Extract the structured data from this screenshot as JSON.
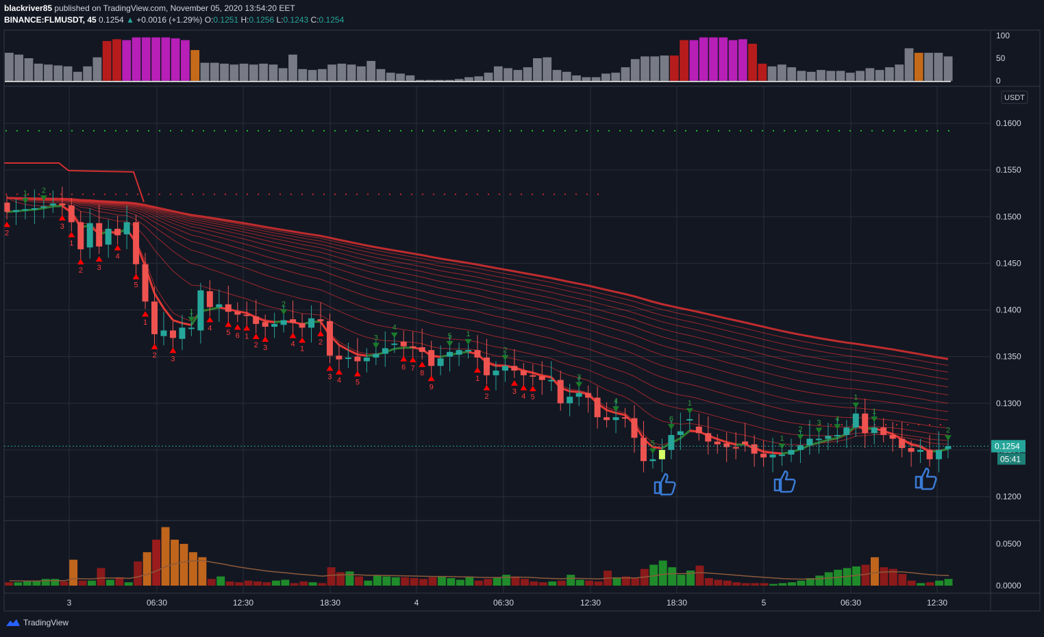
{
  "header": {
    "author": "blackriver85",
    "published_text": "published on TradingView.com, November 05, 2020 13:54:20 EET",
    "symbol": "BINANCE:FLMUSDT, 45",
    "last": "0.1254",
    "arrow": "▲",
    "change": "+0.0016 (+1.29%)",
    "o_label": "O:",
    "o": "0.1251",
    "h_label": "H:",
    "h": "0.1256",
    "l_label": "L:",
    "l": "0.1243",
    "c_label": "C:",
    "c": "0.1254"
  },
  "branding": {
    "logo_text": "TradingView",
    "icon": "tradingview-cloud-icon"
  },
  "currency_label": "USDT",
  "price_tag": {
    "price": "0.1254",
    "countdown": "05:41"
  },
  "colors": {
    "background": "#131722",
    "grid": "#2a2e39",
    "text": "#d1d4dc",
    "up": "#26a69a",
    "down": "#ef5350",
    "ribbon": "#d32f2f",
    "signal_up": "#1b7a2a",
    "signal_down": "#ff0000",
    "thumb": "#3a7bd5"
  },
  "chart_data": [
    {
      "type": "candlestick",
      "name": "price",
      "yaxis_ticks": [
        "0.1600",
        "0.1550",
        "0.1500",
        "0.1450",
        "0.1400",
        "0.1350",
        "0.1300",
        "0.1250",
        "0.1200"
      ],
      "ylim": [
        0.118,
        0.163
      ],
      "xaxis_ticks": [
        "3",
        "06:30",
        "12:30",
        "18:30",
        "4",
        "06:30",
        "12:30",
        "18:30",
        "5",
        "06:30",
        "12:30"
      ],
      "last_price": 0.1254,
      "close": [
        0.1505,
        0.1507,
        0.1508,
        0.1509,
        0.1511,
        0.1514,
        0.1512,
        0.1494,
        0.1465,
        0.1493,
        0.1468,
        0.1487,
        0.148,
        0.1494,
        0.1449,
        0.1409,
        0.1374,
        0.1378,
        0.137,
        0.1381,
        0.1381,
        0.1421,
        0.1403,
        0.1406,
        0.1398,
        0.1395,
        0.1394,
        0.1385,
        0.1382,
        0.1385,
        0.1389,
        0.1386,
        0.1381,
        0.1391,
        0.1388,
        0.1351,
        0.1347,
        0.1349,
        0.1345,
        0.1349,
        0.1353,
        0.1359,
        0.1364,
        0.1361,
        0.136,
        0.1355,
        0.134,
        0.1348,
        0.1355,
        0.1357,
        0.1357,
        0.1349,
        0.133,
        0.1335,
        0.134,
        0.1335,
        0.133,
        0.1329,
        0.1325,
        0.1325,
        0.13,
        0.1307,
        0.1311,
        0.1306,
        0.1285,
        0.1282,
        0.1285,
        0.1284,
        0.1263,
        0.1238,
        0.124,
        0.125,
        0.1266,
        0.127,
        0.1283,
        0.1268,
        0.1259,
        0.1256,
        0.1253,
        0.1252,
        0.1256,
        0.1246,
        0.1242,
        0.1245,
        0.1245,
        0.125,
        0.1255,
        0.1262,
        0.1262,
        0.1265,
        0.1266,
        0.1274,
        0.1289,
        0.1268,
        0.1274,
        0.1266,
        0.1262,
        0.1252,
        0.1248,
        0.125,
        0.124,
        0.125,
        0.1254
      ],
      "open": [
        0.1515,
        0.1505,
        0.1507,
        0.1508,
        0.151,
        0.1512,
        0.1514,
        0.1512,
        0.1494,
        0.1467,
        0.1493,
        0.147,
        0.1487,
        0.1481,
        0.1494,
        0.1449,
        0.1409,
        0.1372,
        0.1378,
        0.1369,
        0.138,
        0.1378,
        0.142,
        0.1403,
        0.1406,
        0.1398,
        0.1395,
        0.1393,
        0.1387,
        0.1382,
        0.1384,
        0.139,
        0.1386,
        0.1381,
        0.139,
        0.1388,
        0.1351,
        0.1348,
        0.135,
        0.1345,
        0.1349,
        0.1353,
        0.1364,
        0.1366,
        0.1361,
        0.136,
        0.1357,
        0.134,
        0.135,
        0.1352,
        0.1356,
        0.1357,
        0.1349,
        0.133,
        0.1335,
        0.134,
        0.1335,
        0.133,
        0.1329,
        0.1325,
        0.1325,
        0.13,
        0.1307,
        0.1311,
        0.1306,
        0.1285,
        0.1282,
        0.1285,
        0.1284,
        0.1263,
        0.1238,
        0.124,
        0.125,
        0.1266,
        0.1283,
        0.1275,
        0.1268,
        0.1259,
        0.1257,
        0.1253,
        0.1259,
        0.1256,
        0.1246,
        0.1242,
        0.1245,
        0.1245,
        0.125,
        0.1255,
        0.1262,
        0.1262,
        0.1265,
        0.1266,
        0.1274,
        0.1289,
        0.1268,
        0.1274,
        0.1266,
        0.1262,
        0.1252,
        0.1248,
        0.125,
        0.124,
        0.1251
      ],
      "up_signal_numbers": [
        "1",
        "2",
        "1",
        "2",
        "3",
        "4",
        "5",
        "1",
        "2",
        "3",
        "4",
        "5",
        "6",
        "1",
        "1",
        "2",
        "3",
        "4",
        "1",
        "1",
        "2",
        "3",
        "4",
        "5",
        "6",
        "7",
        "8"
      ],
      "down_signal_numbers": [
        "2",
        "3",
        "1",
        "2",
        "3",
        "4",
        "5",
        "1",
        "2",
        "3",
        "4",
        "5",
        "6",
        "1",
        "2",
        "3",
        "4",
        "1",
        "2",
        "3",
        "4",
        "5",
        "6",
        "7",
        "8",
        "9",
        "1",
        "2",
        "3",
        "4",
        "5"
      ]
    },
    {
      "type": "bar",
      "name": "oscillator",
      "yaxis_ticks": [
        "100",
        "50",
        "0"
      ],
      "ylim": [
        0,
        100
      ],
      "values": [
        62,
        58,
        50,
        38,
        36,
        34,
        32,
        20,
        32,
        52,
        88,
        92,
        90,
        96,
        96,
        96,
        96,
        94,
        90,
        68,
        40,
        40,
        38,
        36,
        38,
        36,
        38,
        36,
        28,
        58,
        26,
        24,
        26,
        36,
        38,
        36,
        32,
        44,
        26,
        18,
        16,
        12,
        2,
        2,
        2,
        2,
        4,
        8,
        10,
        18,
        32,
        28,
        24,
        30,
        50,
        52,
        24,
        20,
        12,
        8,
        8,
        16,
        18,
        30,
        48,
        54,
        54,
        56,
        56,
        90,
        90,
        96,
        96,
        96,
        90,
        92,
        82,
        38,
        32,
        36,
        30,
        22,
        20,
        24,
        22,
        22,
        18,
        22,
        28,
        24,
        30,
        36,
        72,
        62,
        62,
        62,
        54
      ]
    },
    {
      "type": "bar",
      "name": "volume",
      "yaxis_ticks": [
        "0.0500",
        "0.0000"
      ],
      "ylim": [
        0,
        0.07
      ],
      "values": [
        0.004,
        0.004,
        0.005,
        0.006,
        0.008,
        0.008,
        0.005,
        0.031,
        0.006,
        0.006,
        0.021,
        0.007,
        0.01,
        0.004,
        0.029,
        0.04,
        0.055,
        0.07,
        0.055,
        0.05,
        0.04,
        0.034,
        0.008,
        0.011,
        0.005,
        0.004,
        0.006,
        0.005,
        0.004,
        0.006,
        0.007,
        0.003,
        0.005,
        0.004,
        0.003,
        0.022,
        0.016,
        0.017,
        0.011,
        0.006,
        0.012,
        0.011,
        0.01,
        0.01,
        0.009,
        0.008,
        0.01,
        0.011,
        0.009,
        0.007,
        0.01,
        0.006,
        0.008,
        0.01,
        0.013,
        0.011,
        0.008,
        0.005,
        0.004,
        0.005,
        0.006,
        0.013,
        0.007,
        0.006,
        0.005,
        0.018,
        0.01,
        0.011,
        0.009,
        0.02,
        0.025,
        0.03,
        0.022,
        0.013,
        0.018,
        0.024,
        0.009,
        0.007,
        0.006,
        0.004,
        0.003,
        0.003,
        0.003,
        0.002,
        0.003,
        0.004,
        0.006,
        0.009,
        0.012,
        0.016,
        0.019,
        0.021,
        0.023,
        0.025,
        0.034,
        0.022,
        0.02,
        0.014,
        0.006,
        0.003,
        0.004,
        0.006,
        0.008
      ]
    }
  ]
}
